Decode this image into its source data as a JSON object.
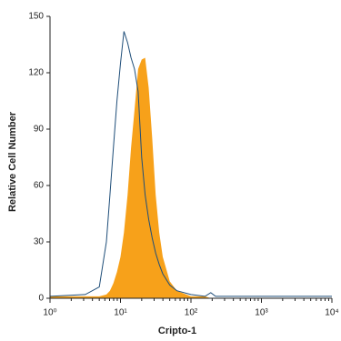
{
  "chart_data": {
    "type": "histogram-overlay",
    "x_label": "Cripto-1",
    "y_label": "Relative Cell Number",
    "x_scale": "log",
    "xlim": [
      1,
      10000
    ],
    "xticks": [
      {
        "value": 1,
        "label": "10⁰"
      },
      {
        "value": 10,
        "label": "10¹"
      },
      {
        "value": 100,
        "label": "10²"
      },
      {
        "value": 1000,
        "label": "10³"
      },
      {
        "value": 10000,
        "label": "10⁴"
      }
    ],
    "ylim": [
      0,
      150
    ],
    "yticks": [
      0,
      30,
      60,
      90,
      120,
      150
    ],
    "x": [
      1,
      3.16,
      5.01,
      6.31,
      7.08,
      7.94,
      8.91,
      10,
      11.2,
      12.6,
      14.1,
      15.8,
      17.8,
      20,
      22.4,
      25.1,
      28.2,
      31.6,
      35.5,
      39.8,
      50.1,
      63.1,
      100,
      158,
      191,
      224,
      398,
      10000
    ],
    "series": [
      {
        "color": "#f7a11a",
        "style": "filled",
        "values": [
          1,
          1,
          1,
          2,
          4,
          8,
          14,
          22,
          35,
          55,
          80,
          100,
          122,
          127,
          128,
          112,
          85,
          55,
          35,
          22,
          9,
          4,
          1,
          1,
          0,
          0,
          0,
          0
        ]
      },
      {
        "color": "#1f4e79",
        "style": "outline",
        "values": [
          1,
          2,
          6,
          30,
          55,
          80,
          105,
          125,
          142,
          136,
          128,
          122,
          110,
          75,
          55,
          42,
          32,
          24,
          18,
          13,
          7,
          4,
          2,
          1,
          3,
          1,
          1,
          1
        ]
      }
    ]
  }
}
